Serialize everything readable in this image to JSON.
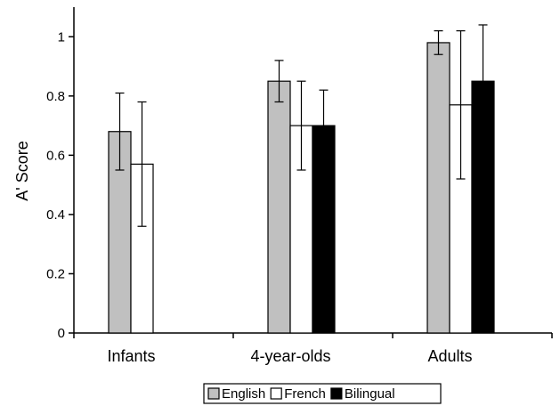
{
  "chart_data": {
    "type": "bar",
    "title": "",
    "xlabel": "",
    "ylabel": "A' Score",
    "ylim": [
      0,
      1.1
    ],
    "yticks": [
      0,
      0.2,
      0.4,
      0.6,
      0.8,
      1
    ],
    "ytick_labels": [
      "0",
      "0.2",
      "0.4",
      "0.6",
      "0.8",
      "1"
    ],
    "categories": [
      "Infants",
      "4-year-olds",
      "Adults"
    ],
    "series": [
      {
        "name": "English",
        "color": "#c0c0c0",
        "values": [
          0.68,
          0.85,
          0.98
        ],
        "err_low": [
          0.55,
          0.78,
          0.94
        ],
        "err_high": [
          0.81,
          0.92,
          1.02
        ]
      },
      {
        "name": "French",
        "color": "#ffffff",
        "values": [
          0.57,
          0.7,
          0.77
        ],
        "err_low": [
          0.36,
          0.55,
          0.52
        ],
        "err_high": [
          0.78,
          0.85,
          1.02
        ]
      },
      {
        "name": "Bilingual",
        "color": "#000000",
        "values": [
          null,
          0.7,
          0.85
        ],
        "err_low": [
          null,
          0.58,
          0.66
        ],
        "err_high": [
          null,
          0.82,
          1.04
        ]
      }
    ],
    "grid": false,
    "error_bars": true,
    "legend_position": "bottom-center"
  }
}
